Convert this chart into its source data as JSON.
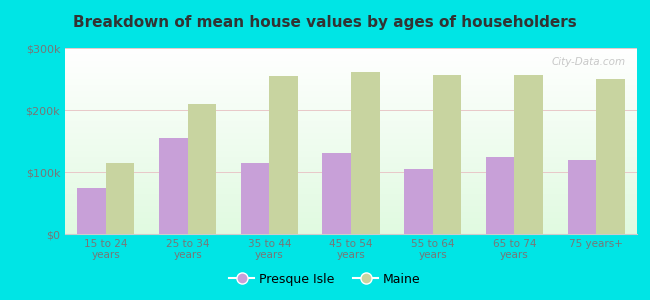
{
  "title": "Breakdown of mean house values by ages of householders",
  "categories": [
    "15 to 24\nyears",
    "25 to 34\nyears",
    "35 to 44\nyears",
    "45 to 54\nyears",
    "55 to 64\nyears",
    "65 to 74\nyears",
    "75 years+"
  ],
  "presque_isle": [
    75000,
    155000,
    115000,
    130000,
    105000,
    125000,
    120000
  ],
  "maine": [
    115000,
    210000,
    255000,
    262000,
    257000,
    257000,
    250000
  ],
  "presque_isle_color": "#c8a0d8",
  "maine_color": "#c8d4a0",
  "background_color": "#00e5e5",
  "ylim": [
    0,
    300000
  ],
  "yticks": [
    0,
    100000,
    200000,
    300000
  ],
  "ytick_labels": [
    "$0",
    "$100k",
    "$200k",
    "$300k"
  ],
  "bar_width": 0.35,
  "legend_labels": [
    "Presque Isle",
    "Maine"
  ],
  "watermark": "City-Data.com"
}
